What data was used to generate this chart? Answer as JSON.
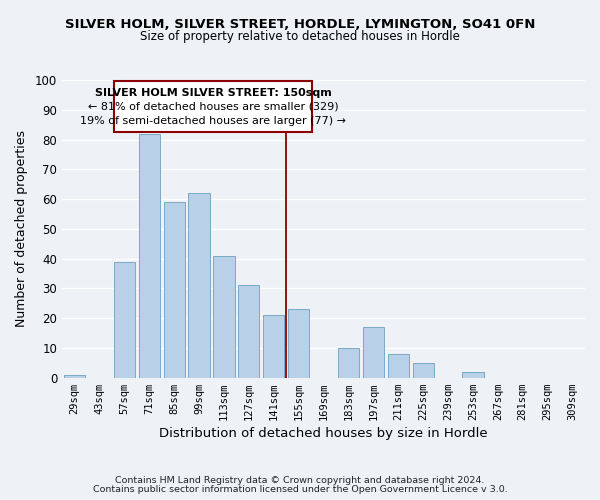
{
  "title": "SILVER HOLM, SILVER STREET, HORDLE, LYMINGTON, SO41 0FN",
  "subtitle": "Size of property relative to detached houses in Hordle",
  "xlabel": "Distribution of detached houses by size in Hordle",
  "ylabel": "Number of detached properties",
  "bar_color": "#b8d0e8",
  "bar_edge_color": "#7aaac8",
  "categories": [
    "29sqm",
    "43sqm",
    "57sqm",
    "71sqm",
    "85sqm",
    "99sqm",
    "113sqm",
    "127sqm",
    "141sqm",
    "155sqm",
    "169sqm",
    "183sqm",
    "197sqm",
    "211sqm",
    "225sqm",
    "239sqm",
    "253sqm",
    "267sqm",
    "281sqm",
    "295sqm",
    "309sqm"
  ],
  "values": [
    1,
    0,
    39,
    82,
    59,
    62,
    41,
    31,
    21,
    23,
    0,
    10,
    17,
    8,
    5,
    0,
    2,
    0,
    0,
    0,
    0
  ],
  "ylim": [
    0,
    100
  ],
  "yticks": [
    0,
    10,
    20,
    30,
    40,
    50,
    60,
    70,
    80,
    90,
    100
  ],
  "annotation_title": "SILVER HOLM SILVER STREET: 150sqm",
  "annotation_line1": "← 81% of detached houses are smaller (329)",
  "annotation_line2": "19% of semi-detached houses are larger (77) →",
  "vline_color": "#8b0000",
  "footer_line1": "Contains HM Land Registry data © Crown copyright and database right 2024.",
  "footer_line2": "Contains public sector information licensed under the Open Government Licence v 3.0.",
  "background_color": "#eef2f7",
  "plot_bg_color": "#eef2f7",
  "grid_color": "#ffffff"
}
